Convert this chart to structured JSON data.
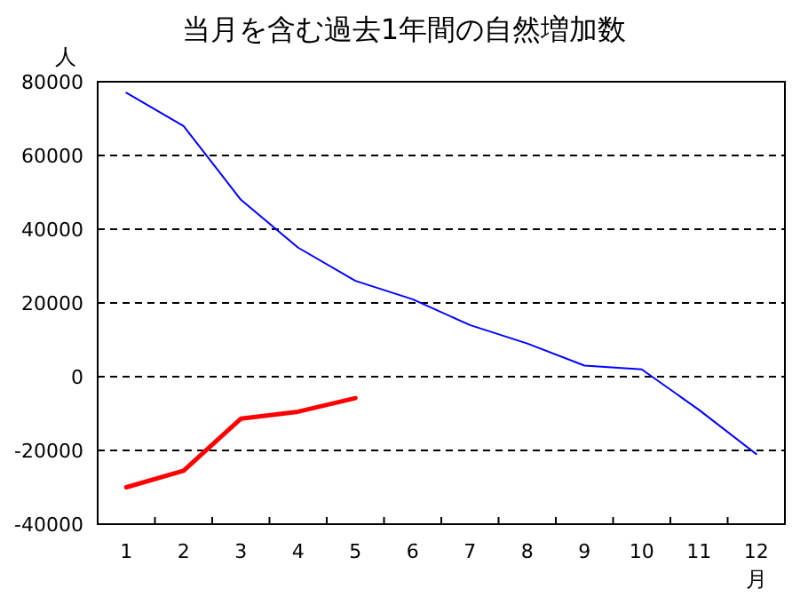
{
  "chart_data": {
    "type": "line",
    "title": "当月を含む過去1年間の自然増加数",
    "ylabel": "人",
    "xlabel": "月",
    "categories": [
      "1",
      "2",
      "3",
      "4",
      "5",
      "6",
      "7",
      "8",
      "9",
      "10",
      "11",
      "12"
    ],
    "series": [
      {
        "color": "#0000ff",
        "values": [
          77000,
          68000,
          48000,
          35000,
          26000,
          21000,
          14000,
          9000,
          3000,
          2000,
          -9000,
          -21000
        ]
      },
      {
        "color": "#ff0000",
        "values": [
          -30000,
          -25500,
          -11400,
          -9500,
          -5800,
          null,
          null,
          null,
          null,
          null,
          null,
          null
        ]
      }
    ],
    "ylim": [
      -40000,
      80000
    ],
    "yticks": [
      -40000,
      -20000,
      0,
      20000,
      40000,
      60000,
      80000
    ],
    "grid": "y",
    "marker": "none",
    "line_style": "solid"
  }
}
